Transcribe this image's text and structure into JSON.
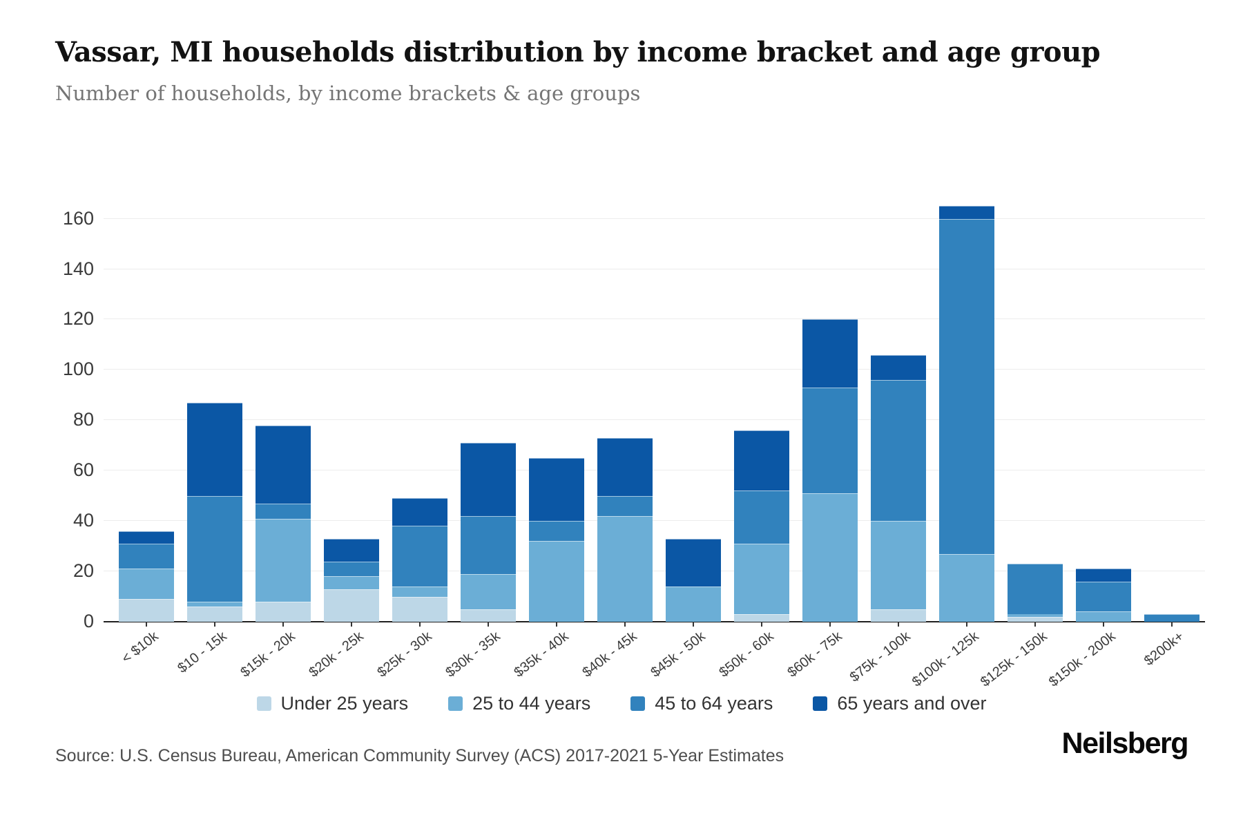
{
  "page": {
    "title": "Vassar, MI households distribution by income bracket and age group",
    "subtitle": "Number of households, by income brackets & age groups",
    "source": "Source: U.S. Census Bureau, American Community Survey (ACS) 2017-2021 5-Year Estimates",
    "logo": "Neilsberg"
  },
  "chart_data": {
    "type": "bar",
    "stacked": true,
    "title": "Vassar, MI households distribution by income bracket and age group",
    "xlabel": "",
    "ylabel": "Number of households",
    "grid": true,
    "legend_position": "bottom",
    "ylim": [
      0,
      181
    ],
    "yticks": [
      0,
      20,
      40,
      60,
      80,
      100,
      120,
      140,
      160
    ],
    "categories": [
      "< $10k",
      "$10 - 15k",
      "$15k - 20k",
      "$20k - 25k",
      "$25k - 30k",
      "$30k - 35k",
      "$35k - 40k",
      "$40k - 45k",
      "$45k - 50k",
      "$50k - 60k",
      "$60k - 75k",
      "$75k - 100k",
      "$100k - 125k",
      "$125k - 150k",
      "$150k - 200k",
      "$200k+"
    ],
    "series": [
      {
        "name": "Under 25 years",
        "color": "#bdd7e7",
        "values": [
          9,
          6,
          8,
          13,
          10,
          5,
          0,
          0,
          0,
          3,
          0,
          5,
          0,
          2,
          0,
          0
        ]
      },
      {
        "name": "25 to 44 years",
        "color": "#6baed6",
        "values": [
          12,
          2,
          33,
          5,
          4,
          14,
          32,
          42,
          14,
          28,
          51,
          35,
          27,
          1,
          4,
          0
        ]
      },
      {
        "name": "45 to 64 years",
        "color": "#3182bd",
        "values": [
          10,
          42,
          6,
          6,
          24,
          23,
          8,
          8,
          0,
          21,
          42,
          56,
          133,
          20,
          12,
          3
        ]
      },
      {
        "name": "65 years and over",
        "color": "#0b57a5",
        "values": [
          5,
          37,
          31,
          9,
          11,
          29,
          25,
          23,
          19,
          24,
          27,
          10,
          5,
          0,
          5,
          0
        ]
      }
    ],
    "totals": [
      36,
      87,
      78,
      33,
      49,
      71,
      65,
      73,
      33,
      76,
      120,
      106,
      165,
      23,
      21,
      3
    ]
  }
}
